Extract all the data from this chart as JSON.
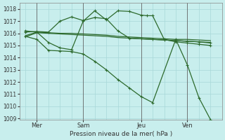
{
  "bg_color": "#c8eeed",
  "grid_color": "#a8d8d8",
  "line_color": "#2d6a2d",
  "title": "Pression niveau de la mer( hPa )",
  "ylim": [
    1009,
    1018.5
  ],
  "yticks": [
    1009,
    1010,
    1011,
    1012,
    1013,
    1014,
    1015,
    1016,
    1017,
    1018
  ],
  "xtick_labels": [
    "Mer",
    "Sam",
    "Jeu",
    "Ven"
  ],
  "xtick_positions": [
    2,
    10,
    20,
    28
  ],
  "vline_positions": [
    2,
    10,
    20,
    28
  ],
  "line1_x": [
    0,
    2,
    4,
    6,
    8,
    10,
    12,
    14,
    16,
    18,
    20,
    22,
    24,
    26,
    28,
    30,
    32
  ],
  "line1_y": [
    1015.8,
    1016.1,
    1016.05,
    1016.0,
    1016.0,
    1015.95,
    1015.9,
    1015.85,
    1015.75,
    1015.7,
    1015.65,
    1015.6,
    1015.55,
    1015.5,
    1015.5,
    1015.45,
    1015.4
  ],
  "line2_x": [
    0,
    2,
    4,
    6,
    8,
    10,
    12,
    14,
    16,
    18,
    20,
    22,
    24,
    26,
    28,
    30,
    32
  ],
  "line2_y": [
    1015.7,
    1016.05,
    1016.0,
    1015.95,
    1015.9,
    1015.85,
    1015.8,
    1015.75,
    1015.65,
    1015.6,
    1015.55,
    1015.5,
    1015.45,
    1015.4,
    1015.35,
    1015.3,
    1015.25
  ],
  "line3_x": [
    0,
    2,
    4,
    6,
    8,
    10,
    12,
    14,
    16,
    18,
    20,
    22,
    24,
    26,
    28,
    30,
    32
  ],
  "line3_y": [
    1016.1,
    1016.15,
    1016.1,
    1017.0,
    1017.35,
    1017.05,
    1017.3,
    1017.2,
    1016.2,
    1015.6,
    1015.55,
    1015.5,
    1015.45,
    1015.4,
    1015.35,
    1015.3,
    1015.2
  ],
  "line4_x": [
    0,
    2,
    4,
    6,
    8,
    10,
    12,
    14,
    16,
    18,
    20,
    21,
    22,
    24,
    26,
    28,
    30,
    32
  ],
  "line4_y": [
    1016.2,
    1016.1,
    1015.25,
    1014.8,
    1014.65,
    1017.0,
    1017.85,
    1017.1,
    1017.85,
    1017.8,
    1017.5,
    1017.45,
    1017.45,
    1015.5,
    1015.3,
    1015.2,
    1015.1,
    1015.0
  ],
  "line5_x": [
    0,
    2,
    4,
    6,
    8,
    10,
    12,
    14,
    16,
    18,
    20,
    22,
    26,
    28,
    30,
    32
  ],
  "line5_y": [
    1015.75,
    1015.5,
    1014.6,
    1014.55,
    1014.5,
    1014.3,
    1013.7,
    1013.0,
    1012.2,
    1011.5,
    1010.8,
    1010.3,
    1015.5,
    1013.4,
    1010.7,
    1008.9
  ],
  "xlim": [
    -1,
    34
  ]
}
